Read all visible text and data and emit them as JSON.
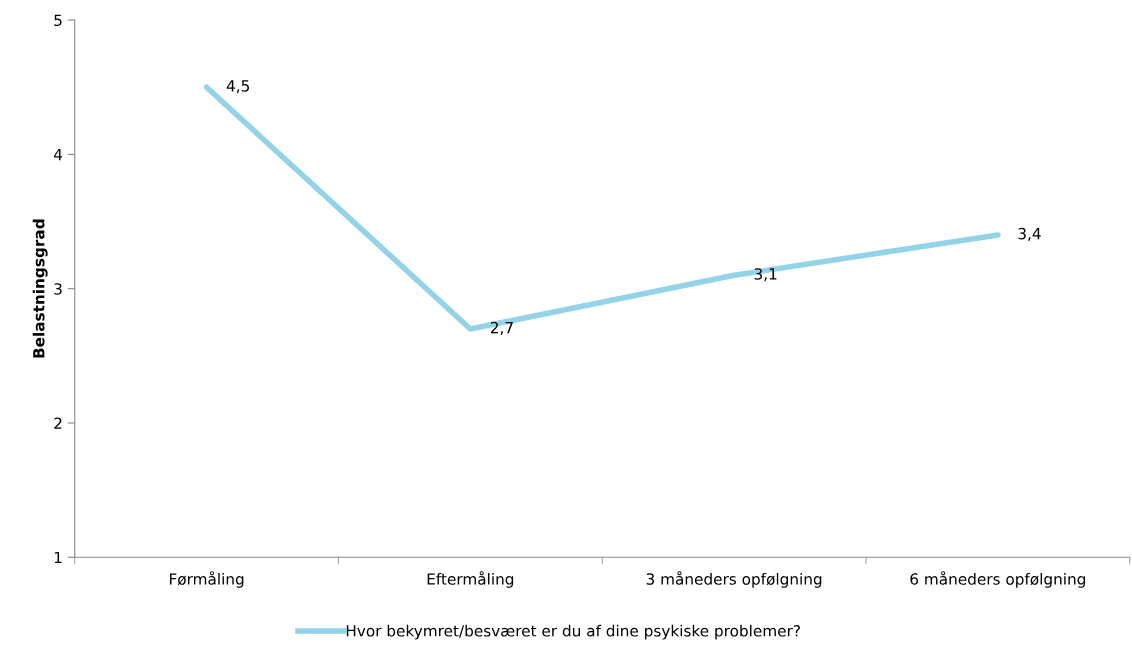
{
  "chart_data": {
    "type": "line",
    "ylabel": "Belastningsgrad",
    "categories": [
      "Førmåling",
      "Eftermåling",
      "3 måneders opfølgning",
      "6 måneders opfølgning"
    ],
    "series": [
      {
        "name": "Hvor bekymret/besværet er du af dine psykiske problemer?",
        "color": "#92d3e8",
        "values": [
          4.5,
          2.7,
          3.1,
          3.4
        ],
        "value_labels": [
          "4,5",
          "2,7",
          "3,1",
          "3,4"
        ]
      }
    ],
    "ylim": [
      1,
      5
    ],
    "yticks": [
      1,
      2,
      3,
      4,
      5
    ],
    "grid": false,
    "legend": "bottom",
    "marker": "none",
    "line_style": "solid"
  }
}
